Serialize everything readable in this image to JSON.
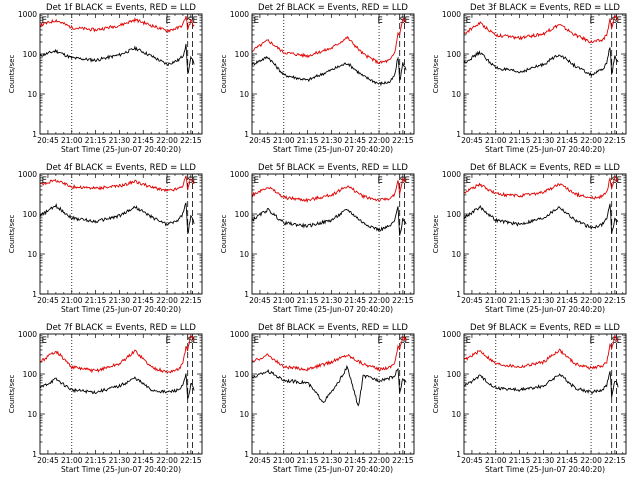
{
  "figure": {
    "time_axis": {
      "tick_labels": [
        "20:45",
        "21:00",
        "21:15",
        "21:30",
        "21:45",
        "22:00",
        "22:15"
      ],
      "tick_minutes": [
        0,
        15,
        30,
        45,
        60,
        75,
        90
      ],
      "range_minutes": [
        -5,
        97
      ],
      "xlabel": "Start Time (25-Jun-07 20:40:20)"
    },
    "y_axis": {
      "label": "Counts/sec",
      "scale": "log",
      "range": [
        1,
        1000
      ],
      "tick_labels": [
        "1",
        "10",
        "100",
        "1000"
      ]
    },
    "series_colors": {
      "events": "#000000",
      "lld": "#e00000"
    },
    "markers": {
      "dotted_minutes": [
        15,
        75
      ],
      "dashed_minutes": [
        88,
        91
      ],
      "letters": [
        {
          "text": "E",
          "minute": -4
        },
        {
          "text": "E",
          "minute": 74
        },
        {
          "text": "S",
          "minute": 88
        },
        {
          "text": "E",
          "minute": 91
        }
      ]
    }
  },
  "chart_data": [
    {
      "type": "line",
      "title": "Det 1f BLACK = Events, RED = LLD",
      "series": [
        {
          "name": "Events",
          "x": [
            -5,
            5,
            15,
            30,
            45,
            55,
            65,
            75,
            82,
            85,
            87,
            88,
            90,
            92
          ],
          "values": [
            90,
            120,
            80,
            70,
            95,
            140,
            90,
            55,
            70,
            90,
            170,
            30,
            80,
            60
          ]
        },
        {
          "name": "LLD",
          "x": [
            -5,
            5,
            15,
            30,
            45,
            55,
            65,
            75,
            82,
            85,
            87,
            88,
            90,
            92
          ],
          "values": [
            520,
            700,
            460,
            400,
            520,
            720,
            520,
            380,
            450,
            540,
            900,
            400,
            700,
            500
          ]
        }
      ]
    },
    {
      "type": "line",
      "title": "Det 2f BLACK = Events, RED = LLD",
      "series": [
        {
          "name": "Events",
          "x": [
            -5,
            5,
            15,
            30,
            45,
            55,
            65,
            75,
            82,
            85,
            87,
            88,
            90,
            92
          ],
          "values": [
            55,
            85,
            30,
            22,
            40,
            60,
            28,
            18,
            20,
            30,
            90,
            20,
            60,
            40
          ]
        },
        {
          "name": "LLD",
          "x": [
            -5,
            5,
            15,
            30,
            45,
            55,
            65,
            75,
            82,
            85,
            87,
            88,
            90,
            92
          ],
          "values": [
            120,
            220,
            110,
            90,
            140,
            260,
            100,
            60,
            70,
            110,
            350,
            300,
            800,
            600
          ]
        }
      ]
    },
    {
      "type": "line",
      "title": "Det 3f BLACK = Events, RED = LLD",
      "series": [
        {
          "name": "Events",
          "x": [
            -5,
            5,
            15,
            30,
            45,
            55,
            65,
            75,
            82,
            85,
            87,
            88,
            90,
            92
          ],
          "values": [
            60,
            110,
            45,
            35,
            55,
            100,
            50,
            30,
            40,
            60,
            160,
            30,
            90,
            60
          ]
        },
        {
          "name": "LLD",
          "x": [
            -5,
            5,
            15,
            30,
            45,
            55,
            65,
            75,
            82,
            85,
            87,
            88,
            90,
            92
          ],
          "values": [
            320,
            600,
            300,
            250,
            320,
            550,
            300,
            200,
            220,
            300,
            800,
            400,
            900,
            700
          ]
        }
      ]
    },
    {
      "type": "line",
      "title": "Det 4f BLACK = Events, RED = LLD",
      "series": [
        {
          "name": "Events",
          "x": [
            -5,
            5,
            15,
            30,
            45,
            55,
            65,
            75,
            82,
            85,
            87,
            88,
            90,
            92
          ],
          "values": [
            90,
            160,
            80,
            65,
            90,
            150,
            85,
            55,
            70,
            100,
            200,
            30,
            90,
            60
          ]
        },
        {
          "name": "LLD",
          "x": [
            -5,
            5,
            15,
            30,
            45,
            55,
            65,
            75,
            82,
            85,
            87,
            88,
            90,
            92
          ],
          "values": [
            550,
            700,
            480,
            440,
            500,
            650,
            470,
            380,
            430,
            520,
            900,
            400,
            800,
            600
          ]
        }
      ]
    },
    {
      "type": "line",
      "title": "Det 5f BLACK = Events, RED = LLD",
      "series": [
        {
          "name": "Events",
          "x": [
            -5,
            5,
            15,
            30,
            45,
            55,
            65,
            75,
            82,
            85,
            87,
            88,
            90,
            92
          ],
          "values": [
            70,
            130,
            60,
            50,
            70,
            130,
            60,
            40,
            50,
            70,
            160,
            25,
            80,
            55
          ]
        },
        {
          "name": "LLD",
          "x": [
            -5,
            5,
            15,
            30,
            45,
            55,
            65,
            75,
            82,
            85,
            87,
            88,
            90,
            92
          ],
          "values": [
            300,
            480,
            260,
            220,
            300,
            500,
            280,
            220,
            250,
            300,
            700,
            300,
            800,
            600
          ]
        }
      ]
    },
    {
      "type": "line",
      "title": "Det 6f BLACK = Events, RED = LLD",
      "series": [
        {
          "name": "Events",
          "x": [
            -5,
            5,
            15,
            30,
            45,
            55,
            65,
            75,
            82,
            85,
            87,
            88,
            90,
            92
          ],
          "values": [
            80,
            150,
            70,
            55,
            80,
            150,
            70,
            45,
            55,
            80,
            180,
            30,
            80,
            60
          ]
        },
        {
          "name": "LLD",
          "x": [
            -5,
            5,
            15,
            30,
            45,
            55,
            65,
            75,
            82,
            85,
            87,
            88,
            90,
            92
          ],
          "values": [
            350,
            550,
            320,
            280,
            350,
            560,
            320,
            250,
            280,
            350,
            800,
            400,
            850,
            650
          ]
        }
      ]
    },
    {
      "type": "line",
      "title": "Det 7f BLACK = Events, RED = LLD",
      "series": [
        {
          "name": "Events",
          "x": [
            -5,
            5,
            15,
            30,
            45,
            55,
            65,
            75,
            82,
            85,
            87,
            88,
            90,
            92
          ],
          "values": [
            45,
            75,
            40,
            35,
            50,
            80,
            40,
            35,
            40,
            50,
            100,
            20,
            60,
            40
          ]
        },
        {
          "name": "LLD",
          "x": [
            -5,
            5,
            15,
            30,
            45,
            55,
            65,
            75,
            82,
            85,
            87,
            88,
            90,
            92
          ],
          "values": [
            200,
            380,
            150,
            120,
            180,
            380,
            150,
            110,
            130,
            180,
            500,
            400,
            900,
            700
          ]
        }
      ]
    },
    {
      "type": "line",
      "title": "Det 8f BLACK = Events, RED = LLD",
      "series": [
        {
          "name": "Events",
          "x": [
            -5,
            5,
            15,
            30,
            40,
            48,
            55,
            62,
            65,
            75,
            82,
            85,
            87,
            88,
            90,
            92
          ],
          "values": [
            80,
            120,
            70,
            60,
            20,
            50,
            150,
            15,
            90,
            70,
            80,
            90,
            150,
            30,
            80,
            60
          ]
        },
        {
          "name": "LLD",
          "x": [
            -5,
            5,
            15,
            30,
            45,
            55,
            65,
            75,
            82,
            85,
            87,
            88,
            90,
            92
          ],
          "values": [
            200,
            300,
            150,
            130,
            200,
            300,
            180,
            130,
            150,
            200,
            500,
            400,
            900,
            700
          ]
        }
      ]
    },
    {
      "type": "line",
      "title": "Det 9f BLACK = Events, RED = LLD",
      "series": [
        {
          "name": "Events",
          "x": [
            -5,
            5,
            15,
            30,
            45,
            55,
            65,
            75,
            82,
            85,
            87,
            88,
            90,
            92
          ],
          "values": [
            50,
            90,
            45,
            40,
            50,
            100,
            45,
            35,
            40,
            55,
            130,
            25,
            70,
            50
          ]
        },
        {
          "name": "LLD",
          "x": [
            -5,
            5,
            15,
            30,
            45,
            55,
            65,
            75,
            82,
            85,
            87,
            88,
            90,
            92
          ],
          "values": [
            220,
            380,
            180,
            150,
            200,
            400,
            180,
            140,
            160,
            200,
            550,
            400,
            900,
            700
          ]
        }
      ]
    }
  ]
}
